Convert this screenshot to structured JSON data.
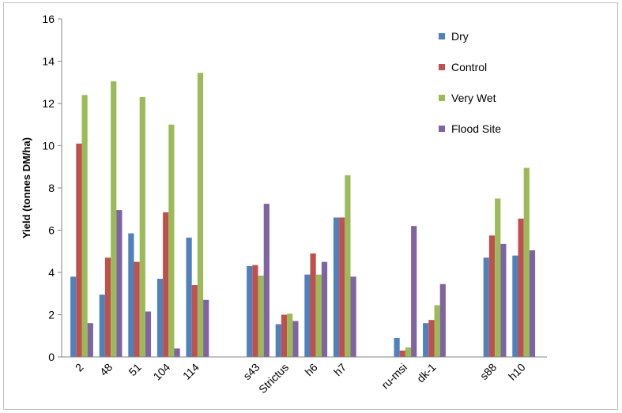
{
  "chart_data": {
    "type": "bar",
    "title": "",
    "xlabel": "",
    "ylabel": "Yield (tonnes DM/ha)",
    "ylim": [
      0,
      16
    ],
    "yticks": [
      0,
      2,
      4,
      6,
      8,
      10,
      12,
      14,
      16
    ],
    "grid": false,
    "legend_position": "right",
    "colors": [
      "#4f81bd",
      "#c0504d",
      "#9bbb59",
      "#8064a2"
    ],
    "categories": [
      "2",
      "48",
      "51",
      "104",
      "114",
      "s43",
      "Strictus",
      "h6",
      "h7",
      "ru-msi",
      "dk-1",
      "s88",
      "h10"
    ],
    "series": [
      {
        "name": "Dry",
        "values": [
          3.8,
          2.95,
          5.85,
          3.7,
          5.65,
          4.3,
          1.55,
          3.9,
          6.6,
          0.9,
          1.6,
          4.7,
          4.8
        ]
      },
      {
        "name": "Control",
        "values": [
          10.1,
          4.7,
          4.5,
          6.85,
          3.4,
          4.35,
          2.0,
          4.9,
          6.6,
          0.3,
          1.75,
          5.75,
          6.55
        ]
      },
      {
        "name": "Very Wet",
        "values": [
          12.4,
          13.05,
          12.3,
          11.0,
          13.45,
          3.85,
          2.05,
          3.9,
          8.6,
          0.45,
          2.45,
          7.5,
          8.95
        ]
      },
      {
        "name": "Flood Site",
        "values": [
          1.6,
          6.95,
          2.15,
          0.4,
          2.7,
          7.25,
          1.7,
          4.5,
          3.8,
          6.2,
          3.45,
          5.35,
          5.05
        ]
      }
    ]
  }
}
